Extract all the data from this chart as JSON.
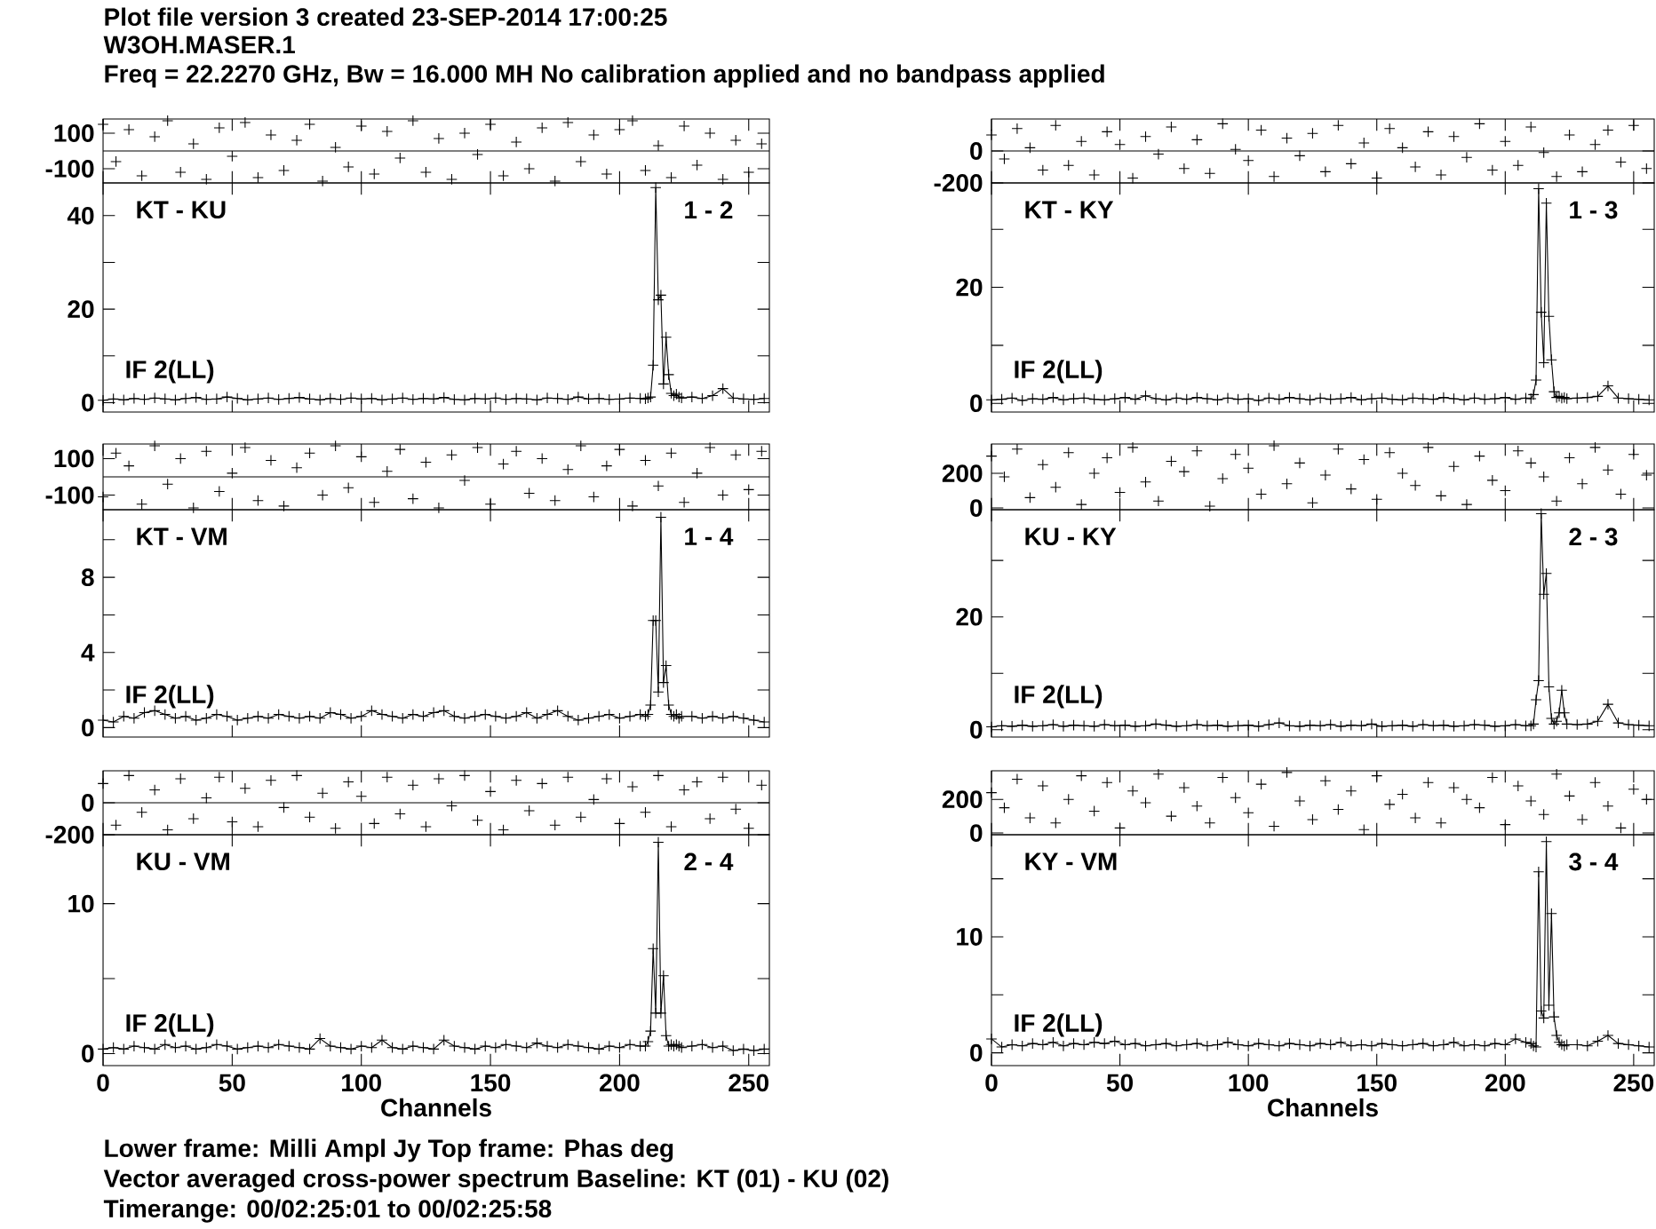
{
  "chart_data": [
    {
      "type": "scatter",
      "title": "Plot file version 3  created 23-SEP-2014 17:00:25",
      "subtitle": "W3OH.MASER.1",
      "annotations": [
        "Freq = 22.2270 GHz, Bw = 16.000 MH   No calibration applied and no bandpass applied"
      ],
      "color": "#000000",
      "marker": "cross",
      "tick_labels": "y",
      "xlim": [
        0,
        258
      ],
      "ylim": [
        -180,
        180
      ],
      "xticks": [
        0,
        50,
        100,
        150,
        200,
        250
      ],
      "yticks": [
        -100,
        100
      ],
      "ref_lines": [
        {
          "axis": "y",
          "value": 0
        }
      ],
      "x": [
        0,
        5,
        10,
        15,
        20,
        25,
        30,
        35,
        40,
        45,
        50,
        55,
        60,
        65,
        70,
        75,
        80,
        85,
        90,
        95,
        100,
        105,
        110,
        115,
        120,
        125,
        130,
        135,
        140,
        145,
        150,
        155,
        160,
        165,
        170,
        175,
        180,
        185,
        190,
        195,
        200,
        205,
        210,
        215,
        220,
        225,
        230,
        235,
        240,
        245,
        250,
        255
      ],
      "values": [
        150,
        -60,
        120,
        -140,
        80,
        170,
        -120,
        40,
        -160,
        130,
        -30,
        160,
        -150,
        90,
        -110,
        60,
        150,
        -170,
        20,
        -90,
        140,
        -130,
        110,
        -40,
        170,
        -120,
        70,
        -160,
        100,
        -20,
        150,
        -140,
        50,
        -100,
        130,
        -170,
        160,
        -60,
        90,
        -130,
        120,
        170,
        -110,
        30,
        -150,
        140,
        -80,
        100,
        -160,
        60,
        -120,
        40
      ]
    },
    {
      "type": "line",
      "annotations": [
        "KT - KU",
        "1 - 2",
        "IF 2(LL)"
      ],
      "color": "#000000",
      "marker": "cross",
      "tick_labels": "y",
      "xlim": [
        0,
        258
      ],
      "ylim": [
        -2,
        47
      ],
      "xticks": [
        0,
        50,
        100,
        150,
        200,
        250
      ],
      "yticks": [
        0,
        {
          "value": 10,
          "label": null
        },
        20,
        {
          "value": 30,
          "label": null
        },
        40
      ],
      "x": [
        0,
        4,
        8,
        12,
        16,
        20,
        24,
        28,
        32,
        36,
        40,
        44,
        48,
        52,
        56,
        60,
        64,
        68,
        72,
        76,
        80,
        84,
        88,
        92,
        96,
        100,
        104,
        108,
        112,
        116,
        120,
        124,
        128,
        132,
        136,
        140,
        144,
        148,
        152,
        156,
        160,
        164,
        168,
        172,
        176,
        180,
        184,
        188,
        192,
        196,
        200,
        204,
        208,
        210,
        211,
        212,
        213,
        214,
        215,
        216,
        217,
        218,
        219,
        220,
        221,
        222,
        223,
        224,
        228,
        232,
        236,
        240,
        244,
        248,
        252,
        256
      ],
      "values": [
        0.5,
        0.8,
        0.6,
        0.9,
        0.7,
        1.0,
        0.8,
        0.6,
        0.9,
        1.1,
        0.7,
        0.8,
        1.2,
        0.9,
        0.6,
        0.8,
        1.0,
        0.7,
        0.9,
        1.1,
        0.8,
        0.6,
        0.9,
        0.7,
        1.0,
        0.8,
        0.9,
        0.6,
        0.8,
        1.0,
        0.7,
        0.9,
        0.8,
        1.1,
        0.7,
        0.6,
        0.9,
        0.8,
        1.0,
        0.7,
        0.9,
        0.8,
        0.6,
        1.0,
        0.9,
        0.7,
        1.2,
        0.8,
        0.9,
        0.7,
        0.8,
        1.0,
        0.9,
        0.8,
        1.0,
        1.2,
        8,
        46,
        22,
        23,
        4,
        14,
        6,
        2,
        1.5,
        1.8,
        1.2,
        1.0,
        1.2,
        0.9,
        1.5,
        3.0,
        1.0,
        0.8,
        0.7,
        0.9
      ]
    },
    {
      "type": "scatter",
      "color": "#000000",
      "marker": "cross",
      "tick_labels": "y",
      "xlim": [
        0,
        258
      ],
      "ylim": [
        -200,
        200
      ],
      "xticks": [
        0,
        50,
        100,
        150,
        200,
        250
      ],
      "yticks": [
        -200,
        0
      ],
      "ref_lines": [
        {
          "axis": "y",
          "value": 0
        }
      ],
      "x": [
        0,
        5,
        10,
        15,
        20,
        25,
        30,
        35,
        40,
        45,
        50,
        55,
        60,
        65,
        70,
        75,
        80,
        85,
        90,
        95,
        100,
        105,
        110,
        115,
        120,
        125,
        130,
        135,
        140,
        145,
        150,
        155,
        160,
        165,
        170,
        175,
        180,
        185,
        190,
        195,
        200,
        205,
        210,
        215,
        220,
        225,
        230,
        235,
        240,
        245,
        250,
        255
      ],
      "values": [
        100,
        -50,
        140,
        20,
        -120,
        160,
        -90,
        60,
        -150,
        120,
        40,
        -170,
        90,
        -20,
        150,
        -110,
        70,
        -140,
        170,
        10,
        -60,
        130,
        -160,
        80,
        -30,
        110,
        -130,
        160,
        -80,
        50,
        -170,
        140,
        20,
        -100,
        120,
        -150,
        90,
        -40,
        170,
        -120,
        60,
        -90,
        150,
        -10,
        -160,
        100,
        -130,
        40,
        130,
        -70,
        160,
        -110
      ]
    },
    {
      "type": "line",
      "annotations": [
        "KT - KY",
        "1 - 3",
        "IF 2(LL)"
      ],
      "color": "#000000",
      "marker": "cross",
      "tick_labels": "y",
      "xlim": [
        0,
        258
      ],
      "ylim": [
        -1.5,
        38
      ],
      "xticks": [
        0,
        50,
        100,
        150,
        200,
        250
      ],
      "yticks": [
        0,
        {
          "value": 10,
          "label": null
        },
        20,
        {
          "value": 30,
          "label": null
        }
      ],
      "x": [
        0,
        4,
        8,
        12,
        16,
        20,
        24,
        28,
        32,
        36,
        40,
        44,
        48,
        52,
        56,
        60,
        64,
        68,
        72,
        76,
        80,
        84,
        88,
        92,
        96,
        100,
        104,
        108,
        112,
        116,
        120,
        124,
        128,
        132,
        136,
        140,
        144,
        148,
        152,
        156,
        160,
        164,
        168,
        172,
        176,
        180,
        184,
        188,
        192,
        196,
        200,
        204,
        208,
        210,
        211,
        212,
        213,
        214,
        215,
        216,
        217,
        218,
        219,
        220,
        221,
        222,
        223,
        224,
        228,
        232,
        236,
        240,
        244,
        248,
        252,
        256
      ],
      "values": [
        0.6,
        0.7,
        0.9,
        0.5,
        0.8,
        0.7,
        1.0,
        0.6,
        0.8,
        0.9,
        0.7,
        0.6,
        0.8,
        1.0,
        0.7,
        1.3,
        0.8,
        0.6,
        0.9,
        0.7,
        1.0,
        0.8,
        0.6,
        0.9,
        0.7,
        0.8,
        0.5,
        0.9,
        0.7,
        1.0,
        0.8,
        0.6,
        0.9,
        0.7,
        0.8,
        1.0,
        0.6,
        0.8,
        0.9,
        0.7,
        0.6,
        0.9,
        0.8,
        0.7,
        1.0,
        0.8,
        0.6,
        0.9,
        0.7,
        0.8,
        1.0,
        0.7,
        0.9,
        0.8,
        1.5,
        4,
        37,
        15.7,
        7,
        34.5,
        15,
        7.5,
        2,
        1,
        1.2,
        0.9,
        1.0,
        0.8,
        0.9,
        1.0,
        1.2,
        3.0,
        0.9,
        0.8,
        0.7,
        0.6
      ]
    },
    {
      "type": "scatter",
      "color": "#000000",
      "marker": "cross",
      "tick_labels": "y",
      "xlim": [
        0,
        258
      ],
      "ylim": [
        -180,
        180
      ],
      "xticks": [
        0,
        50,
        100,
        150,
        200,
        250
      ],
      "yticks": [
        -100,
        100
      ],
      "ref_lines": [
        {
          "axis": "y",
          "value": 0
        }
      ],
      "x": [
        0,
        5,
        10,
        15,
        20,
        25,
        30,
        35,
        40,
        45,
        50,
        55,
        60,
        65,
        70,
        75,
        80,
        85,
        90,
        95,
        100,
        105,
        110,
        115,
        120,
        125,
        130,
        135,
        140,
        145,
        150,
        155,
        160,
        165,
        170,
        175,
        180,
        185,
        190,
        195,
        200,
        205,
        210,
        215,
        220,
        225,
        230,
        235,
        240,
        245,
        250,
        255
      ],
      "values": [
        -110,
        130,
        60,
        -150,
        170,
        -40,
        100,
        -170,
        140,
        -80,
        20,
        160,
        -130,
        90,
        -160,
        50,
        130,
        -100,
        170,
        -60,
        110,
        -140,
        30,
        150,
        -120,
        80,
        -170,
        120,
        -20,
        160,
        -150,
        70,
        140,
        -90,
        100,
        -130,
        40,
        170,
        -110,
        60,
        150,
        -160,
        90,
        -50,
        130,
        -140,
        20,
        160,
        -100,
        120,
        -70,
        140
      ]
    },
    {
      "type": "line",
      "annotations": [
        "KT - VM",
        "1 - 4",
        "IF 2(LL)"
      ],
      "color": "#000000",
      "marker": "cross",
      "tick_labels": "y",
      "xlim": [
        0,
        258
      ],
      "ylim": [
        -0.5,
        11.6
      ],
      "xticks": [
        0,
        50,
        100,
        150,
        200,
        250
      ],
      "yticks": [
        0,
        {
          "value": 2,
          "label": null
        },
        4,
        {
          "value": 6,
          "label": null
        },
        8,
        {
          "value": 10,
          "label": null
        }
      ],
      "x": [
        0,
        4,
        8,
        12,
        16,
        20,
        24,
        28,
        32,
        36,
        40,
        44,
        48,
        52,
        56,
        60,
        64,
        68,
        72,
        76,
        80,
        84,
        88,
        92,
        96,
        100,
        104,
        108,
        112,
        116,
        120,
        124,
        128,
        132,
        136,
        140,
        144,
        148,
        152,
        156,
        160,
        164,
        168,
        172,
        176,
        180,
        184,
        188,
        192,
        196,
        200,
        204,
        208,
        210,
        211,
        212,
        213,
        214,
        215,
        216,
        217,
        218,
        219,
        220,
        221,
        222,
        223,
        224,
        228,
        232,
        236,
        240,
        244,
        248,
        252,
        256
      ],
      "values": [
        0.4,
        0.3,
        0.6,
        0.5,
        0.8,
        0.9,
        0.7,
        0.5,
        0.6,
        0.4,
        0.5,
        0.7,
        0.6,
        0.4,
        0.5,
        0.6,
        0.5,
        0.7,
        0.6,
        0.5,
        0.6,
        0.5,
        0.8,
        0.7,
        0.5,
        0.6,
        0.9,
        0.7,
        0.6,
        0.5,
        0.7,
        0.6,
        0.8,
        0.9,
        0.6,
        0.5,
        0.6,
        0.7,
        0.6,
        0.5,
        0.6,
        0.8,
        0.5,
        0.7,
        0.9,
        0.6,
        0.4,
        0.5,
        0.6,
        0.7,
        0.5,
        0.6,
        0.7,
        0.6,
        0.7,
        1.2,
        5.7,
        5.7,
        1.9,
        11.2,
        2.4,
        3.3,
        1.2,
        0.7,
        0.6,
        0.7,
        0.5,
        0.6,
        0.6,
        0.5,
        0.6,
        0.5,
        0.6,
        0.5,
        0.4,
        0.3
      ]
    },
    {
      "type": "scatter",
      "color": "#000000",
      "marker": "cross",
      "tick_labels": "y",
      "xlim": [
        0,
        258
      ],
      "ylim": [
        -10,
        370
      ],
      "xticks": [
        0,
        50,
        100,
        150,
        200,
        250
      ],
      "yticks": [
        0,
        200
      ],
      "x": [
        0,
        5,
        10,
        15,
        20,
        25,
        30,
        35,
        40,
        45,
        50,
        55,
        60,
        65,
        70,
        75,
        80,
        85,
        90,
        95,
        100,
        105,
        110,
        115,
        120,
        125,
        130,
        135,
        140,
        145,
        150,
        155,
        160,
        165,
        170,
        175,
        180,
        185,
        190,
        195,
        200,
        205,
        210,
        215,
        220,
        225,
        230,
        235,
        240,
        245,
        250,
        255
      ],
      "values": [
        300,
        180,
        340,
        60,
        250,
        120,
        320,
        20,
        200,
        290,
        90,
        350,
        150,
        40,
        270,
        210,
        330,
        10,
        170,
        310,
        230,
        80,
        360,
        140,
        260,
        30,
        190,
        340,
        110,
        280,
        50,
        320,
        200,
        130,
        350,
        70,
        240,
        20,
        300,
        160,
        100,
        330,
        260,
        180,
        40,
        290,
        140,
        350,
        220,
        80,
        310,
        190
      ]
    },
    {
      "type": "line",
      "annotations": [
        "KU - KY",
        "2 - 3",
        "IF 2(LL)"
      ],
      "color": "#000000",
      "marker": "cross",
      "tick_labels": "y",
      "xlim": [
        0,
        258
      ],
      "ylim": [
        -1.3,
        39
      ],
      "xticks": [
        0,
        50,
        100,
        150,
        200,
        250
      ],
      "yticks": [
        0,
        {
          "value": 10,
          "label": null
        },
        20,
        {
          "value": 30,
          "label": null
        }
      ],
      "x": [
        0,
        4,
        8,
        12,
        16,
        20,
        24,
        28,
        32,
        36,
        40,
        44,
        48,
        52,
        56,
        60,
        64,
        68,
        72,
        76,
        80,
        84,
        88,
        92,
        96,
        100,
        104,
        108,
        112,
        116,
        120,
        124,
        128,
        132,
        136,
        140,
        144,
        148,
        152,
        156,
        160,
        164,
        168,
        172,
        176,
        180,
        184,
        188,
        192,
        196,
        200,
        204,
        208,
        210,
        211,
        212,
        213,
        214,
        215,
        216,
        217,
        218,
        219,
        220,
        221,
        222,
        223,
        224,
        228,
        232,
        236,
        240,
        244,
        248,
        252,
        256
      ],
      "values": [
        0.5,
        0.7,
        0.6,
        0.8,
        0.6,
        0.7,
        0.9,
        0.6,
        0.8,
        0.7,
        0.6,
        0.9,
        0.7,
        0.8,
        0.6,
        0.7,
        1.0,
        0.8,
        0.6,
        0.7,
        0.9,
        0.7,
        0.8,
        0.6,
        0.7,
        0.8,
        0.6,
        0.9,
        1.2,
        0.7,
        0.6,
        0.8,
        0.7,
        0.9,
        0.6,
        0.8,
        0.7,
        1.0,
        0.6,
        0.7,
        0.8,
        0.6,
        0.9,
        0.7,
        0.8,
        0.6,
        0.7,
        0.9,
        0.8,
        0.6,
        0.7,
        0.9,
        0.7,
        0.7,
        1.0,
        5.3,
        8.7,
        38.3,
        24,
        27.7,
        7.6,
        2.0,
        1.0,
        1.5,
        3.0,
        7.0,
        3.0,
        1.0,
        0.9,
        1.0,
        1.5,
        4.5,
        1.2,
        0.9,
        0.8,
        0.7
      ]
    },
    {
      "type": "scatter",
      "color": "#000000",
      "marker": "cross",
      "tick_labels": "y",
      "xlim": [
        0,
        258
      ],
      "ylim": [
        -200,
        200
      ],
      "xticks": [
        0,
        50,
        100,
        150,
        200,
        250
      ],
      "yticks": [
        -200,
        0
      ],
      "ref_lines": [
        {
          "axis": "y",
          "value": 0
        }
      ],
      "x": [
        0,
        5,
        10,
        15,
        20,
        25,
        30,
        35,
        40,
        45,
        50,
        55,
        60,
        65,
        70,
        75,
        80,
        85,
        90,
        95,
        100,
        105,
        110,
        115,
        120,
        125,
        130,
        135,
        140,
        145,
        150,
        155,
        160,
        165,
        170,
        175,
        180,
        185,
        190,
        195,
        200,
        205,
        210,
        215,
        220,
        225,
        230,
        235,
        240,
        245,
        250,
        255
      ],
      "values": [
        120,
        -140,
        170,
        -60,
        80,
        -170,
        150,
        -100,
        30,
        160,
        -120,
        90,
        -150,
        140,
        -30,
        170,
        -90,
        60,
        -160,
        130,
        40,
        -130,
        160,
        -70,
        110,
        -150,
        150,
        -20,
        170,
        -110,
        70,
        -170,
        140,
        -50,
        120,
        -140,
        160,
        -90,
        20,
        150,
        -130,
        100,
        -60,
        170,
        -150,
        80,
        130,
        -100,
        160,
        -40,
        -160,
        110
      ]
    },
    {
      "type": "line",
      "annotations": [
        "KU - VM",
        "2 - 4",
        "IF 2(LL)",
        "Lower frame: Milli Ampl Jy   Top frame: Phas deg",
        "Vector averaged cross-power spectrum    Baseline: KT (01) - KU (02)",
        "Timerange: 00/02:25:01 to 00/02:25:58"
      ],
      "xlabel": "Channels",
      "color": "#000000",
      "marker": "cross",
      "xlim": [
        0,
        258
      ],
      "ylim": [
        -0.8,
        14.6
      ],
      "xticks": [
        0,
        50,
        100,
        150,
        200,
        250
      ],
      "yticks": [
        0,
        {
          "value": 5,
          "label": null
        },
        10
      ],
      "x": [
        0,
        4,
        8,
        12,
        16,
        20,
        24,
        28,
        32,
        36,
        40,
        44,
        48,
        52,
        56,
        60,
        64,
        68,
        72,
        76,
        80,
        84,
        88,
        92,
        96,
        100,
        104,
        108,
        112,
        116,
        120,
        124,
        128,
        132,
        136,
        140,
        144,
        148,
        152,
        156,
        160,
        164,
        168,
        172,
        176,
        180,
        184,
        188,
        192,
        196,
        200,
        204,
        208,
        210,
        211,
        212,
        213,
        214,
        215,
        216,
        217,
        218,
        219,
        220,
        221,
        222,
        223,
        224,
        228,
        232,
        236,
        240,
        244,
        248,
        252,
        256
      ],
      "values": [
        0.3,
        0.4,
        0.3,
        0.5,
        0.4,
        0.3,
        0.6,
        0.4,
        0.5,
        0.3,
        0.4,
        0.6,
        0.5,
        0.3,
        0.4,
        0.5,
        0.4,
        0.6,
        0.5,
        0.4,
        0.3,
        1.0,
        0.5,
        0.4,
        0.3,
        0.5,
        0.4,
        0.9,
        0.4,
        0.3,
        0.5,
        0.4,
        0.3,
        0.9,
        0.5,
        0.4,
        0.3,
        0.5,
        0.4,
        0.6,
        0.5,
        0.4,
        0.7,
        0.5,
        0.4,
        0.6,
        0.5,
        0.4,
        0.3,
        0.5,
        0.4,
        0.6,
        0.5,
        0.5,
        0.8,
        1.5,
        7.0,
        2.7,
        14.1,
        2.7,
        5.2,
        1.2,
        0.5,
        0.6,
        0.5,
        0.6,
        0.5,
        0.4,
        0.5,
        0.6,
        0.4,
        0.5,
        0.2,
        0.3,
        0.2,
        0.3
      ]
    },
    {
      "type": "scatter",
      "color": "#000000",
      "marker": "cross",
      "tick_labels": "y",
      "xlim": [
        0,
        258
      ],
      "ylim": [
        -10,
        370
      ],
      "xticks": [
        0,
        50,
        100,
        150,
        200,
        250
      ],
      "yticks": [
        0,
        200
      ],
      "x": [
        0,
        5,
        10,
        15,
        20,
        25,
        30,
        35,
        40,
        45,
        50,
        55,
        60,
        65,
        70,
        75,
        80,
        85,
        90,
        95,
        100,
        105,
        110,
        115,
        120,
        125,
        130,
        135,
        140,
        145,
        150,
        155,
        160,
        165,
        170,
        175,
        180,
        185,
        190,
        195,
        200,
        205,
        210,
        215,
        220,
        225,
        230,
        235,
        240,
        245,
        250,
        255
      ],
      "values": [
        240,
        150,
        320,
        90,
        280,
        60,
        200,
        340,
        130,
        300,
        30,
        250,
        180,
        350,
        100,
        270,
        160,
        60,
        330,
        210,
        120,
        290,
        40,
        360,
        190,
        80,
        310,
        140,
        250,
        20,
        340,
        170,
        230,
        90,
        300,
        60,
        270,
        200,
        150,
        330,
        50,
        280,
        190,
        110,
        350,
        220,
        80,
        300,
        160,
        30,
        260,
        200
      ]
    },
    {
      "type": "line",
      "annotations": [
        "KY - VM",
        "3 - 4",
        "IF 2(LL)"
      ],
      "xlabel": "Channels",
      "color": "#000000",
      "marker": "cross",
      "xlim": [
        0,
        258
      ],
      "ylim": [
        -1.1,
        18.8
      ],
      "xticks": [
        0,
        50,
        100,
        150,
        200,
        250
      ],
      "yticks": [
        0,
        {
          "value": 5,
          "label": null
        },
        10,
        {
          "value": 15,
          "label": null
        }
      ],
      "x": [
        0,
        4,
        8,
        12,
        16,
        20,
        24,
        28,
        32,
        36,
        40,
        44,
        48,
        52,
        56,
        60,
        64,
        68,
        72,
        76,
        80,
        84,
        88,
        92,
        96,
        100,
        104,
        108,
        112,
        116,
        120,
        124,
        128,
        132,
        136,
        140,
        144,
        148,
        152,
        156,
        160,
        164,
        168,
        172,
        176,
        180,
        184,
        188,
        192,
        196,
        200,
        204,
        208,
        210,
        211,
        212,
        213,
        214,
        215,
        216,
        217,
        218,
        219,
        220,
        221,
        222,
        223,
        224,
        228,
        232,
        236,
        240,
        244,
        248,
        252,
        256
      ],
      "values": [
        1.2,
        0.5,
        0.7,
        0.6,
        0.8,
        0.7,
        0.9,
        0.6,
        0.8,
        0.7,
        0.9,
        0.8,
        1.0,
        0.7,
        0.8,
        0.6,
        0.7,
        0.8,
        0.6,
        0.7,
        0.8,
        0.6,
        0.7,
        0.9,
        0.7,
        0.6,
        0.8,
        0.7,
        0.6,
        0.8,
        0.7,
        0.6,
        0.8,
        0.7,
        0.9,
        0.6,
        0.7,
        0.6,
        0.8,
        0.7,
        0.6,
        0.7,
        0.8,
        0.6,
        0.7,
        0.9,
        0.6,
        0.7,
        0.6,
        0.8,
        0.7,
        1.2,
        0.9,
        0.8,
        0.6,
        0.5,
        15.6,
        3.6,
        3.0,
        18.2,
        4.1,
        12,
        3.1,
        1.5,
        0.9,
        0.7,
        0.6,
        0.7,
        0.7,
        0.6,
        1.0,
        1.5,
        0.8,
        0.7,
        0.6,
        0.5
      ]
    }
  ]
}
